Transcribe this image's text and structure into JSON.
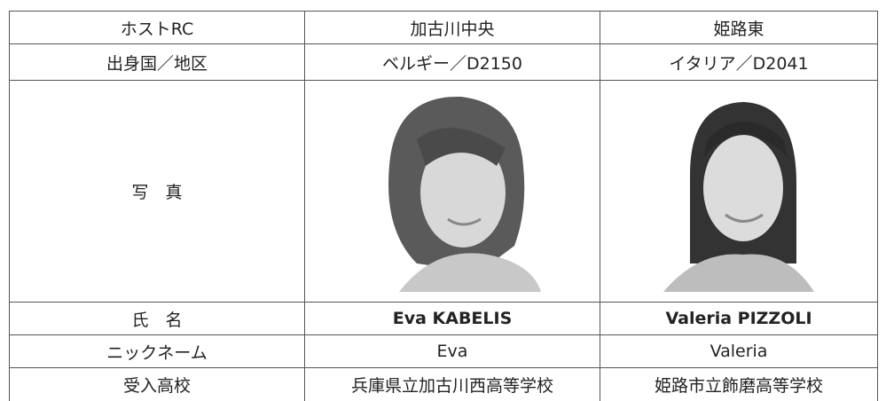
{
  "table": {
    "rows": [
      [
        "ホストRC",
        "加古川中央",
        "姫路東"
      ],
      [
        "出身国／地区",
        "ベルギー／D2150",
        "イタリア／D2041"
      ],
      [
        "写　真"
      ],
      [
        "氏　名",
        "Eva KABELIS",
        "Valeria PIZZOLI"
      ],
      [
        "ニックネーム",
        "Eva",
        "Valeria"
      ],
      [
        "受入高校",
        "兵庫県立加古川西高等学校",
        "姫路市立飾磨高等学校"
      ]
    ]
  }
}
